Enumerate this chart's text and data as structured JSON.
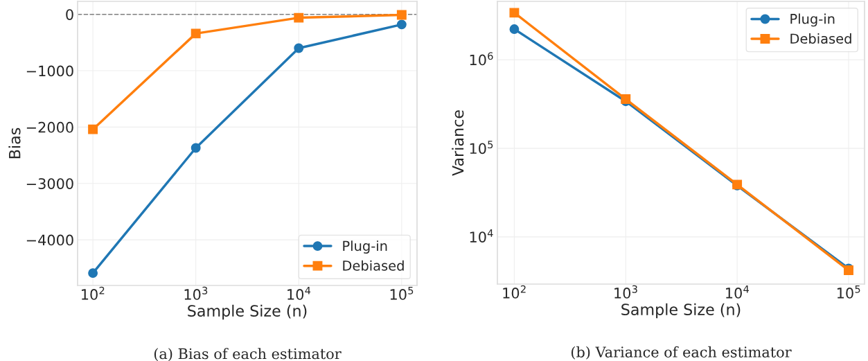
{
  "chart_data": [
    {
      "type": "line",
      "xlabel": "Sample Size (n)",
      "ylabel": "Bias",
      "log": "x",
      "x": [
        100,
        1000,
        10000,
        100000
      ],
      "xlim": [
        71,
        141000
      ],
      "xticks": [
        {
          "value": 100,
          "label": "10$^{2}$"
        },
        {
          "value": 1000,
          "label": "10$^{3}$"
        },
        {
          "value": 10000,
          "label": "10$^{4}$"
        },
        {
          "value": 100000,
          "label": "10$^{5}$"
        }
      ],
      "ylim": [
        -4810,
        230
      ],
      "yticks": [
        {
          "value": 0,
          "label": "0"
        },
        {
          "value": -1000,
          "label": "−1000"
        },
        {
          "value": -2000,
          "label": "−2000"
        },
        {
          "value": -3000,
          "label": "−3000"
        },
        {
          "value": -4000,
          "label": "−4000"
        }
      ],
      "series": [
        {
          "name": "Plug-in",
          "color": "#1f77b4",
          "marker": "circle",
          "values": [
            -4590,
            -2370,
            -600,
            -180
          ]
        },
        {
          "name": "Debiased",
          "color": "#ff7f0e",
          "marker": "square",
          "values": [
            -2040,
            -340,
            -60,
            -10
          ]
        }
      ],
      "ref_lines": [
        {
          "axis": "y",
          "value": 0,
          "color": "#808080",
          "line_style": "dashed"
        }
      ],
      "grid": true,
      "legend": "bottom right",
      "annotations": [
        "(a) Bias of each estimator"
      ]
    },
    {
      "type": "line",
      "xlabel": "Sample Size (n)",
      "ylabel": "Variance",
      "log": "xy",
      "x": [
        100,
        1000,
        10000,
        100000
      ],
      "xlim": [
        70.5,
        139000
      ],
      "xticks": [
        {
          "value": 100,
          "label": "10$^{2}$"
        },
        {
          "value": 1000,
          "label": "10$^{3}$"
        },
        {
          "value": 10000,
          "label": "10$^{4}$"
        },
        {
          "value": 100000,
          "label": "10$^{5}$"
        }
      ],
      "ylim": [
        2930,
        4570000
      ],
      "yticks": [
        {
          "value": 10000,
          "label": "10$^{4}$"
        },
        {
          "value": 100000,
          "label": "10$^{5}$"
        },
        {
          "value": 1000000,
          "label": "10$^{6}$"
        }
      ],
      "series": [
        {
          "name": "Plug-in",
          "color": "#1f77b4",
          "marker": "circle",
          "values": [
            2220000,
            340000,
            38000,
            4400
          ]
        },
        {
          "name": "Debiased",
          "color": "#ff7f0e",
          "marker": "square",
          "values": [
            3400000,
            360000,
            39000,
            4200
          ]
        }
      ],
      "grid": true,
      "legend": "top right",
      "annotations": [
        "(b) Variance of each estimator"
      ]
    }
  ]
}
